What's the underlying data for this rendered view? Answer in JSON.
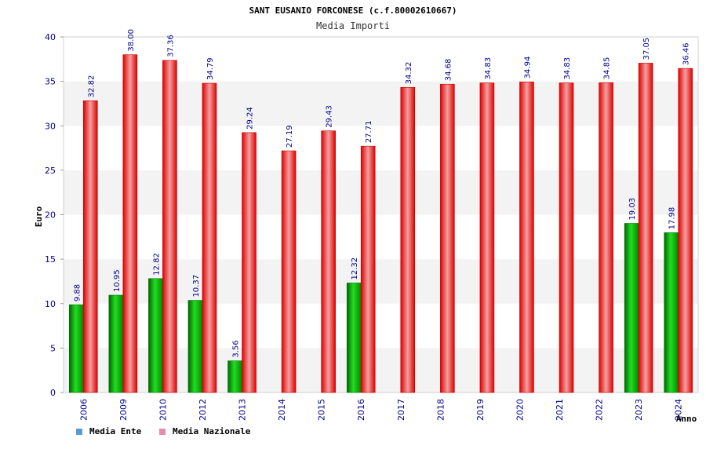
{
  "chart_data": {
    "type": "bar",
    "title": "SANT EUSANIO FORCONESE (c.f.80002610667)",
    "subtitle": "Media Importi",
    "ylabel": "Euro",
    "xlabel": "Anno",
    "ylim": [
      0,
      40
    ],
    "yticks": [
      0,
      5,
      10,
      15,
      20,
      25,
      30,
      35,
      40
    ],
    "grid": "horizontal bands",
    "legend_position": "bottom-left",
    "categories": [
      "2006",
      "2009",
      "2010",
      "2012",
      "2013",
      "2014",
      "2015",
      "2016",
      "2017",
      "2018",
      "2019",
      "2020",
      "2021",
      "2022",
      "2023",
      "2024"
    ],
    "series": [
      {
        "name": "Media Ente",
        "color": "#00aa00",
        "legend_color": "#5b9bd5",
        "values": [
          9.88,
          10.95,
          12.82,
          10.37,
          3.56,
          null,
          null,
          12.32,
          null,
          null,
          null,
          null,
          null,
          null,
          19.03,
          17.98
        ],
        "labels": [
          "9.88",
          "10.95",
          "12.82",
          "10.37",
          "3.56",
          "",
          "",
          "12.32",
          "",
          "",
          "",
          "",
          "",
          "",
          "19.03",
          "17.98"
        ]
      },
      {
        "name": "Media Nazionale",
        "color": "#ee0000",
        "legend_color": "#e88aaa",
        "values": [
          32.82,
          38.0,
          37.36,
          34.79,
          29.24,
          27.19,
          29.43,
          27.71,
          34.32,
          34.68,
          34.83,
          34.94,
          34.83,
          34.85,
          37.05,
          36.46
        ],
        "labels": [
          "32.82",
          "38.00",
          "37.36",
          "34.79",
          "29.24",
          "27.19",
          "29.43",
          "27.71",
          "34.32",
          "34.68",
          "34.83",
          "34.94",
          "34.83",
          "34.85",
          "37.05",
          "36.46"
        ]
      }
    ]
  }
}
